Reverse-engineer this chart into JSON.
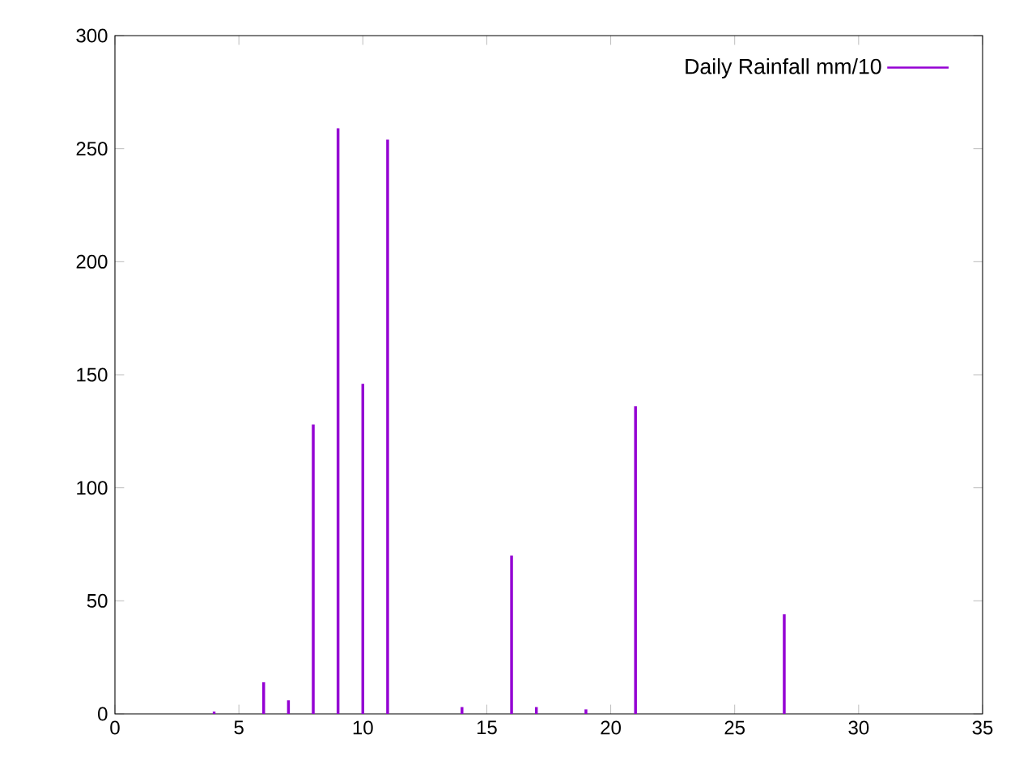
{
  "chart_data": {
    "type": "bar",
    "x": [
      4,
      6,
      7,
      8,
      9,
      10,
      11,
      14,
      16,
      17,
      19,
      21,
      27
    ],
    "series": [
      {
        "name": "Daily Rainfall mm/10",
        "color": "#9400d3",
        "values": [
          1,
          14,
          6,
          128,
          259,
          146,
          254,
          3,
          70,
          3,
          2,
          136,
          44
        ]
      }
    ],
    "xlim": [
      0,
      35
    ],
    "xticks": [
      0,
      5,
      10,
      15,
      20,
      25,
      30,
      35
    ],
    "ylim": [
      0,
      300
    ],
    "yticks": [
      0,
      50,
      100,
      150,
      200,
      250,
      300
    ],
    "legend": "top right",
    "grid": false
  }
}
